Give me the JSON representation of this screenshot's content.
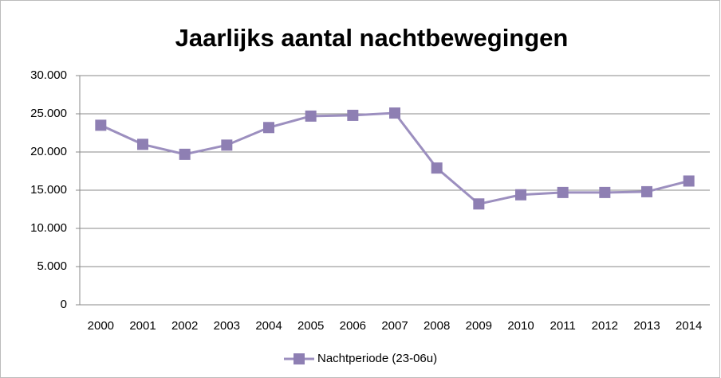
{
  "chart_data": {
    "type": "line",
    "title": "Jaarlijks aantal nachtbewegingen",
    "categories": [
      "2000",
      "2001",
      "2002",
      "2003",
      "2004",
      "2005",
      "2006",
      "2007",
      "2008",
      "2009",
      "2010",
      "2011",
      "2012",
      "2013",
      "2014"
    ],
    "series": [
      {
        "name": "Nachtperiode (23-06u)",
        "color": "#9c8fbf",
        "values": [
          23500,
          21000,
          19700,
          20900,
          23200,
          24700,
          24800,
          25100,
          17900,
          13200,
          14400,
          14700,
          14700,
          14800,
          16200
        ]
      }
    ],
    "ylim": [
      0,
      30000
    ],
    "yticks": [
      0,
      {
        "value": 5000,
        "label": "5.000"
      },
      {
        "value": 10000,
        "label": "10.000"
      },
      {
        "value": 15000,
        "label": "15.000"
      },
      {
        "value": 20000,
        "label": "20.000"
      },
      {
        "value": 25000,
        "label": "25.000"
      },
      {
        "value": 30000,
        "label": "30.000"
      }
    ],
    "grid": true,
    "legend": "bottom"
  }
}
